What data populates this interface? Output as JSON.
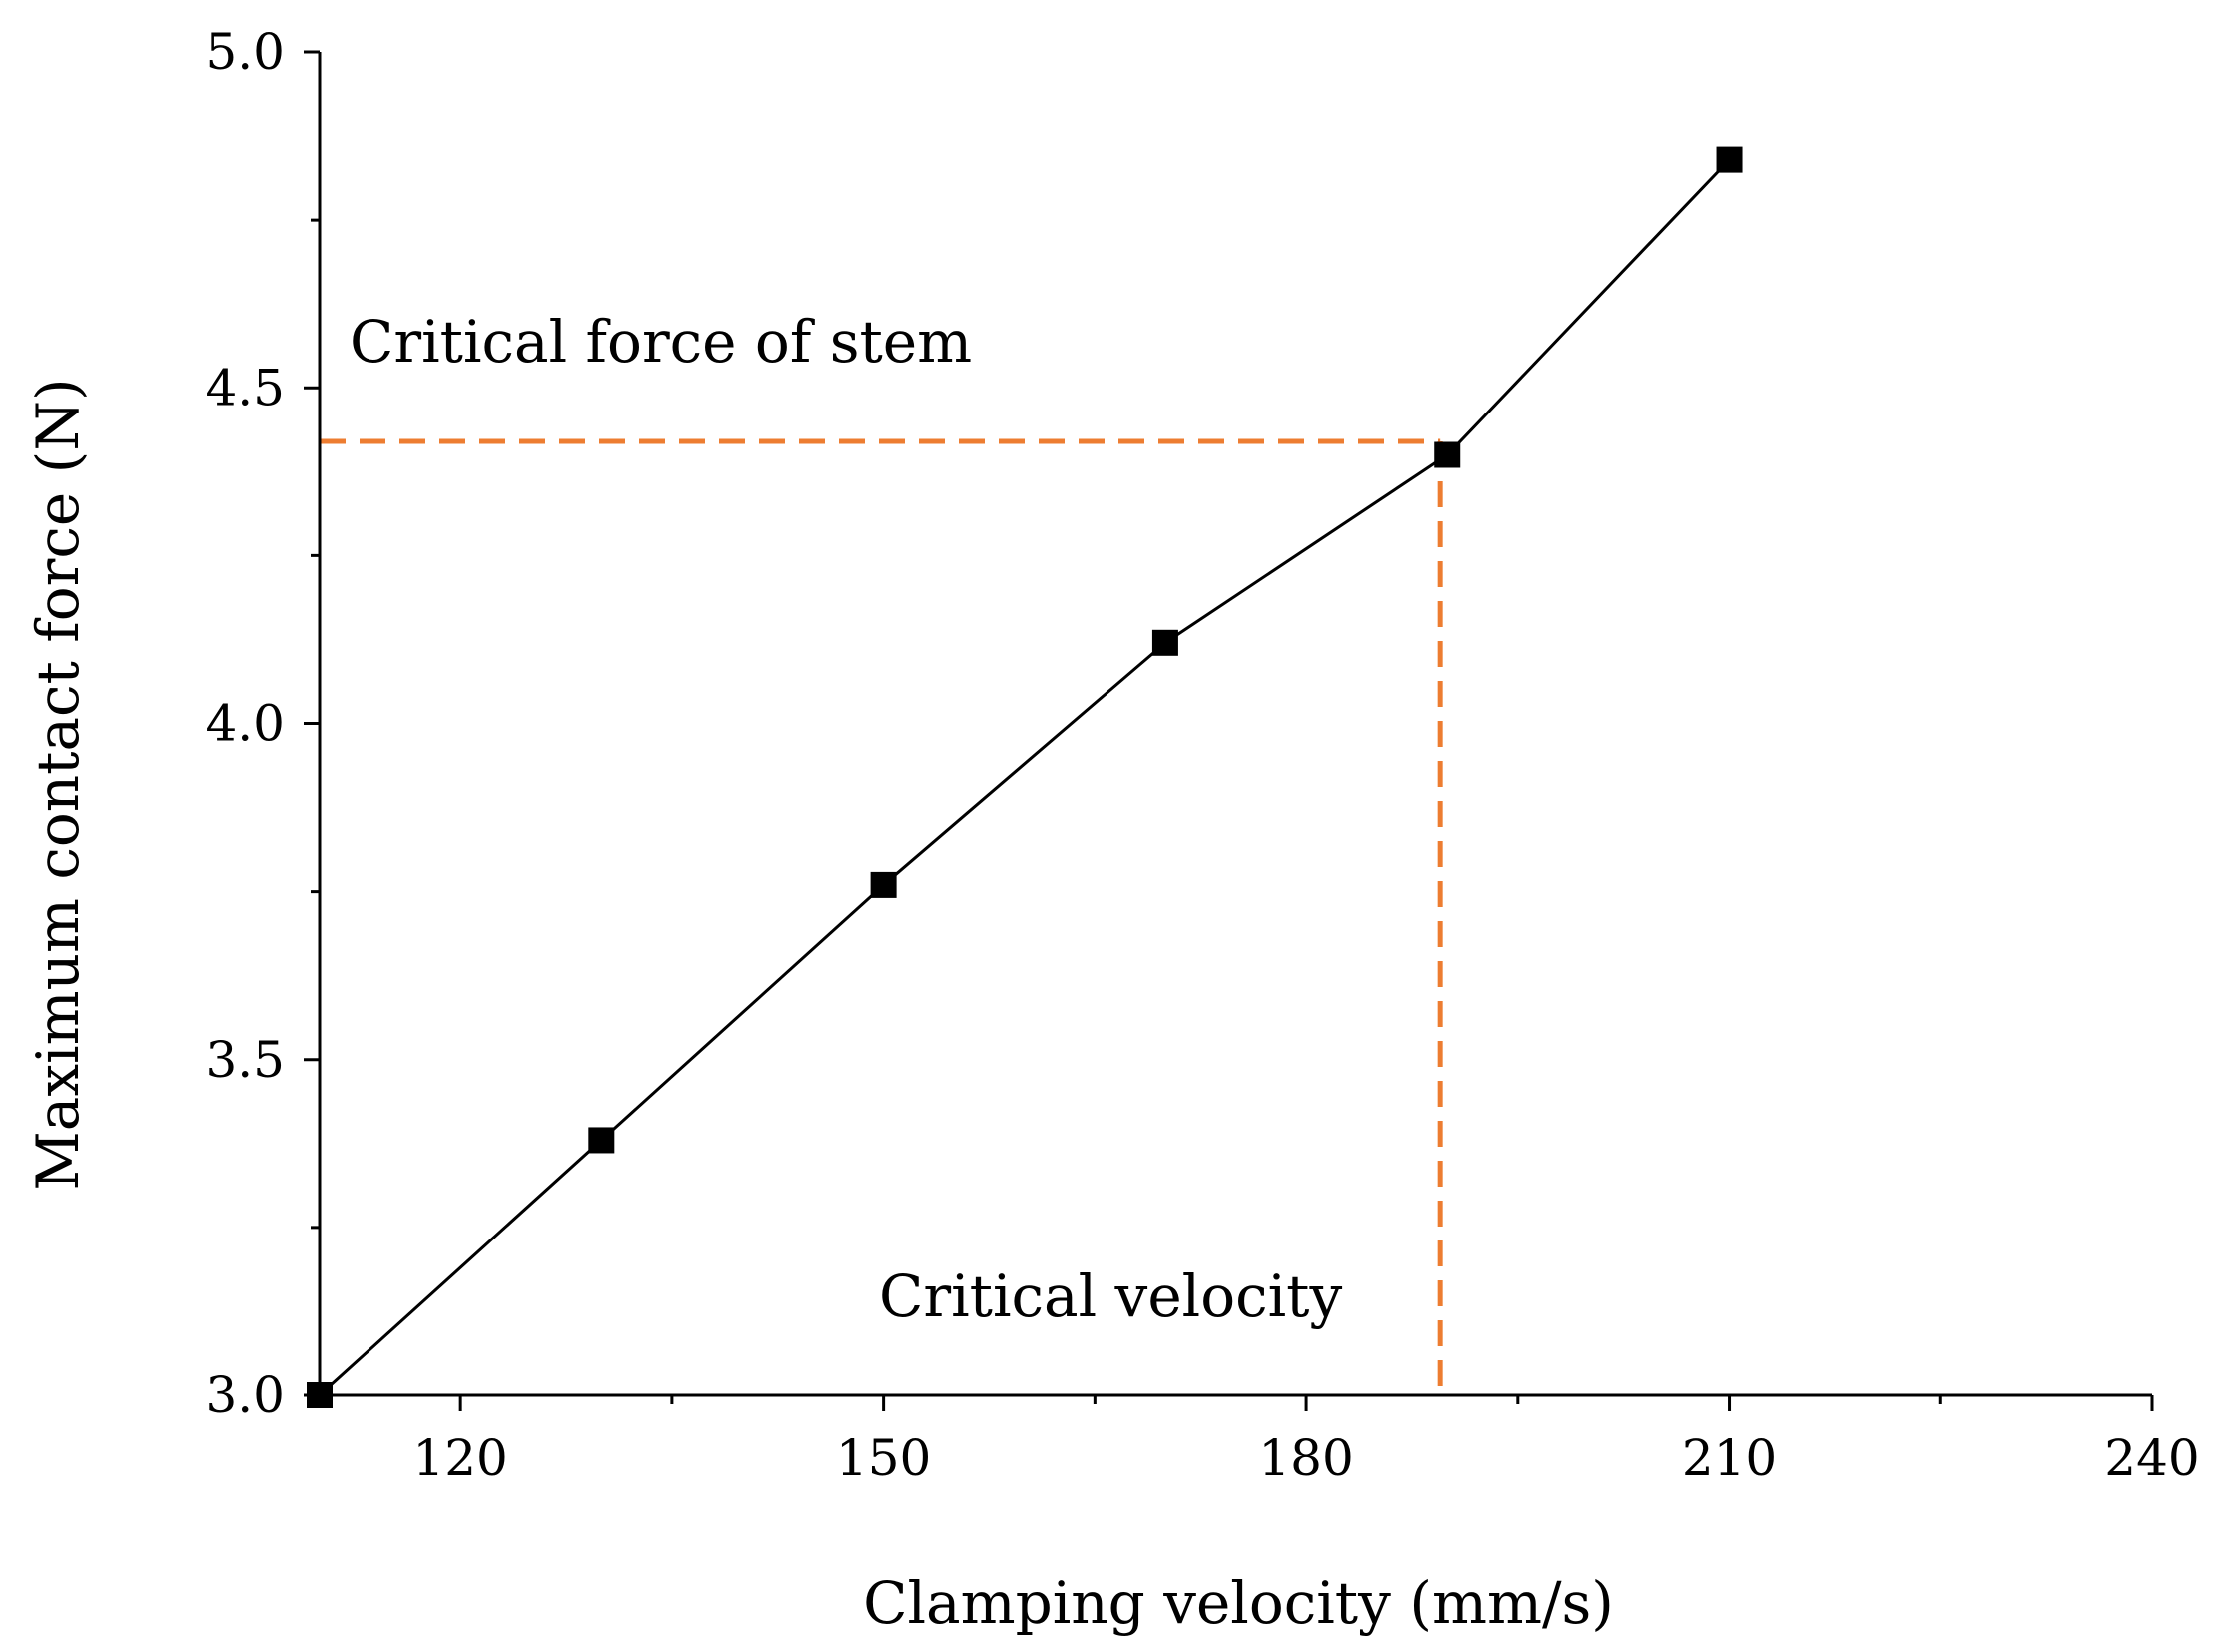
{
  "chart_data": {
    "type": "line",
    "title": "",
    "xlabel": "Clamping velocity (mm/s)",
    "ylabel": "Maximum contact force (N)",
    "xlim": [
      110,
      240
    ],
    "ylim": [
      3.0,
      5.0
    ],
    "x_major_ticks": [
      120,
      150,
      180,
      210,
      240
    ],
    "x_minor_ticks": [
      135,
      165,
      195,
      225
    ],
    "y_major_ticks": [
      3.0,
      3.5,
      4.0,
      4.5,
      5.0
    ],
    "y_minor_ticks": [
      3.25,
      3.75,
      4.25,
      4.75
    ],
    "x_tick_labels": [
      "120",
      "150",
      "180",
      "210",
      "240"
    ],
    "y_tick_labels": [
      "3.0",
      "3.5",
      "4.0",
      "4.5",
      "5.0"
    ],
    "series": [
      {
        "name": "Maximum contact force",
        "marker": "square",
        "color": "#000000",
        "x": [
          110,
          130,
          150,
          170,
          190,
          210
        ],
        "y": [
          3.0,
          3.38,
          3.76,
          4.12,
          4.4,
          4.84
        ]
      }
    ],
    "reference_lines": {
      "color": "#ED7D31",
      "critical_force": 4.42,
      "critical_velocity": 189.5
    },
    "annotations": {
      "force_label": "Critical force of stem",
      "velocity_label": "Critical velocity"
    },
    "grid": false,
    "legend": "none"
  }
}
